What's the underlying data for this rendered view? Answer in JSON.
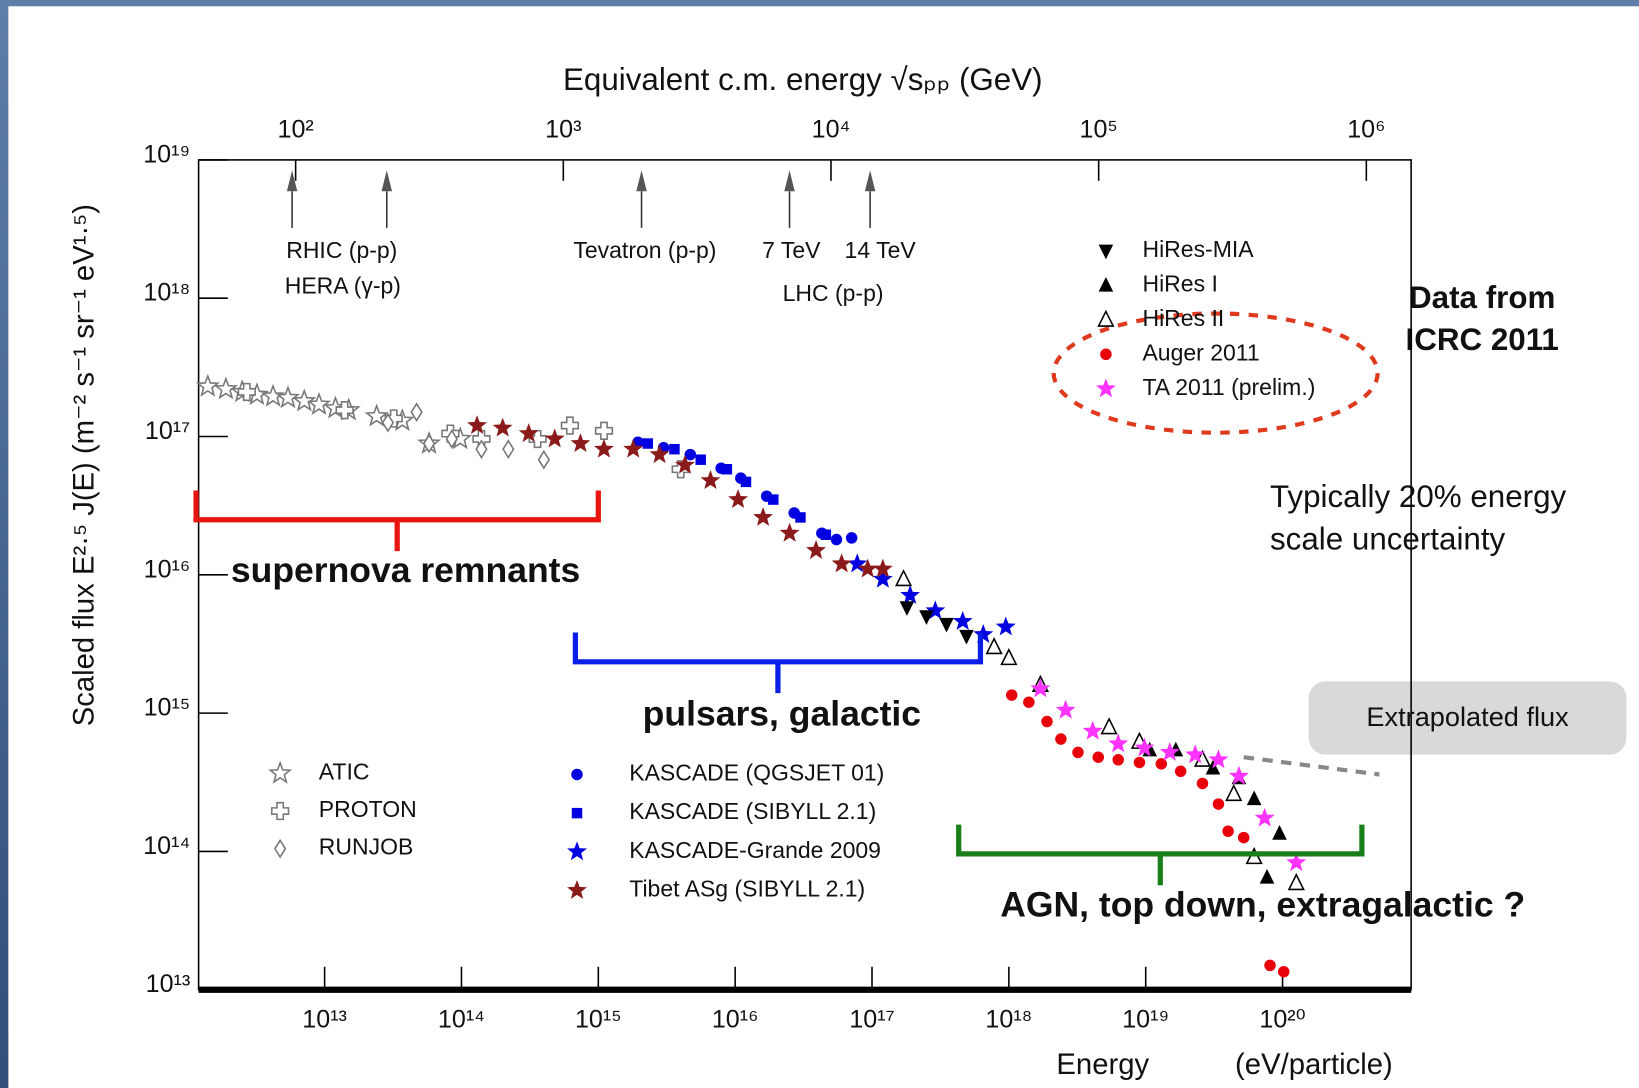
{
  "chart_data": {
    "type": "scatter",
    "x2label": "Equivalent c.m. energy √sₚₚ  (GeV)",
    "xlabel": "Energy",
    "xlabel_unit": "(eV/particle)",
    "ylabel": "Scaled flux  E²·⁵ J(E)  (m⁻² s⁻¹ sr⁻¹ eV¹·⁵)",
    "xscale": "log",
    "yscale": "log",
    "xlim": [
      1200000000000.0,
      8.7e+20
    ],
    "xticks": [
      {
        "value": 10000000000000.0,
        "label": "10¹³"
      },
      {
        "value": 100000000000000.0,
        "label": "10¹⁴"
      },
      {
        "value": 1000000000000000.0,
        "label": "10¹⁵"
      },
      {
        "value": 1e+16,
        "label": "10¹⁶"
      },
      {
        "value": 1e+17,
        "label": "10¹⁷"
      },
      {
        "value": 1e+18,
        "label": "10¹⁸"
      },
      {
        "value": 1e+19,
        "label": "10¹⁹"
      },
      {
        "value": 1e+20,
        "label": "10²⁰"
      }
    ],
    "ylim": [
      10000000000000.0,
      1e+19
    ],
    "yticks": [
      {
        "value": 10000000000000.0,
        "label": "10¹³"
      },
      {
        "value": 100000000000000.0,
        "label": "10¹⁴"
      },
      {
        "value": 1000000000000000.0,
        "label": "10¹⁵"
      },
      {
        "value": 1e+16,
        "label": "10¹⁶"
      },
      {
        "value": 1e+17,
        "label": "10¹⁷"
      },
      {
        "value": 1e+18,
        "label": "10¹⁸"
      },
      {
        "value": 1e+19,
        "label": "10¹⁹"
      }
    ],
    "x2lim": [
      43.4,
      1470000.0
    ],
    "x2ticks": [
      {
        "value": 100,
        "label": "10²"
      },
      {
        "value": 1000,
        "label": "10³"
      },
      {
        "value": 10000,
        "label": "10⁴"
      },
      {
        "value": 100000,
        "label": "10⁵"
      },
      {
        "value": 1000000,
        "label": "10⁶"
      }
    ],
    "x2_markers": [
      97,
      219,
      1960,
      7000,
      14000
    ],
    "x2_marker_labels": [
      "RHIC (p-p)",
      "HERA (γ-p)",
      "Tevatron (p-p)",
      "7 TeV",
      "14 TeV",
      "LHC (p-p)"
    ],
    "series": [
      {
        "name": "ATIC",
        "marker": "star-open",
        "color": "#777777",
        "x": [
          1400000000000.0,
          1900000000000.0,
          2500000000000.0,
          3200000000000.0,
          4200000000000.0,
          5400000000000.0,
          7100000000000.0,
          9100000000000.0,
          12000000000000.0,
          15000000000000.0,
          24000000000000.0,
          37000000000000.0,
          58000000000000.0,
          98000000000000.0
        ],
        "values": [
          2.3e+17,
          2.2e+17,
          2.1e+17,
          2e+17,
          1.95e+17,
          1.9e+17,
          1.8e+17,
          1.7e+17,
          1.6e+17,
          1.55e+17,
          1.4e+17,
          1.3e+17,
          8.9e+16,
          9.6e+16
        ]
      },
      {
        "name": "PROTON",
        "marker": "cross-open",
        "color": "#777777",
        "x": [
          2700000000000.0,
          14000000000000.0,
          32000000000000.0,
          83000000000000.0,
          140000000000000.0,
          360000000000000.0,
          620000000000000.0,
          1100000000000000.0,
          4000000000000000.0
        ],
        "values": [
          2.1e+17,
          1.55e+17,
          1.35e+17,
          1.05e+17,
          9.6e+16,
          9.6e+16,
          1.2e+17,
          1.1e+17,
          5.8e+16
        ]
      },
      {
        "name": "RUNJOB",
        "marker": "diamond-open",
        "color": "#777777",
        "x": [
          29000000000000.0,
          47000000000000.0,
          58000000000000.0,
          85000000000000.0,
          140000000000000.0,
          220000000000000.0,
          400000000000000.0
        ],
        "values": [
          1.26e+17,
          1.5e+17,
          8.9e+16,
          9.6e+16,
          8.1e+16,
          8.1e+16,
          6.8e+16
        ]
      },
      {
        "name": "KASCADE (QGSJET 01)",
        "marker": "circle",
        "color": "#0000e0",
        "x": [
          1950000000000000.0,
          3000000000000000.0,
          4700000000000000.0,
          7900000000000000.0,
          1.1e+16,
          1.7e+16,
          2.7e+16,
          4.3e+16,
          5.5e+16,
          7.1e+16
        ],
        "values": [
          9.1e+16,
          8.3e+16,
          7.4e+16,
          5.9e+16,
          5e+16,
          3.7e+16,
          2.8e+16,
          2e+16,
          1.8e+16,
          1.85e+16
        ]
      },
      {
        "name": "KASCADE (SIBYLL 2.1)",
        "marker": "square",
        "color": "#0000e0",
        "x": [
          2300000000000000.0,
          3600000000000000.0,
          5600000000000000.0,
          8700000000000000.0,
          1.2e+16,
          1.9e+16,
          3e+16,
          4.6e+16
        ],
        "values": [
          8.9e+16,
          8.1e+16,
          6.8e+16,
          5.8e+16,
          4.7e+16,
          3.5e+16,
          2.6e+16,
          1.95e+16
        ]
      },
      {
        "name": "KASCADE-Grande 2009",
        "marker": "star",
        "color": "#0000e0",
        "x": [
          7.8e+16,
          1.2e+17,
          1.9e+17,
          2.9e+17,
          4.6e+17,
          6.5e+17,
          9.5e+17
        ],
        "values": [
          1.2e+16,
          9300000000000000.0,
          7100000000000000.0,
          5500000000000000.0,
          4600000000000000.0,
          3700000000000000.0,
          4200000000000000.0
        ]
      },
      {
        "name": "Tibet ASg (SIBYLL 2.1)",
        "marker": "star",
        "color": "#8b1a1a",
        "x": [
          130000000000000.0,
          200000000000000.0,
          310000000000000.0,
          480000000000000.0,
          740000000000000.0,
          1100000000000000.0,
          1800000000000000.0,
          2800000000000000.0,
          4300000000000000.0,
          6600000000000000.0,
          1.05e+16,
          1.6e+16,
          2.5e+16,
          3.9e+16,
          6e+16,
          9.3e+16,
          1.2e+17
        ],
        "values": [
          1.2e+17,
          1.15e+17,
          1.05e+17,
          9.6e+16,
          8.9e+16,
          8.1e+16,
          8.1e+16,
          7.4e+16,
          6.2e+16,
          4.8e+16,
          3.5e+16,
          2.6e+16,
          2e+16,
          1.5e+16,
          1.2e+16,
          1.1e+16,
          1.1e+16
        ]
      },
      {
        "name": "HiRes-MIA",
        "marker": "triangle-down",
        "color": "#000000",
        "x": [
          1.8e+17,
          2.5e+17,
          3.5e+17,
          4.9e+17
        ],
        "values": [
          5800000000000000.0,
          5000000000000000.0,
          4400000000000000.0,
          3600000000000000.0
        ]
      },
      {
        "name": "HiRes I",
        "marker": "triangle",
        "color": "#000000",
        "x": [
          1.07e+19,
          1.66e+19,
          3.1e+19,
          4.8e+19,
          6.2e+19,
          9.5e+19,
          7.7e+19
        ],
        "values": [
          540000000000000.0,
          540000000000000.0,
          400000000000000.0,
          340000000000000.0,
          240000000000000.0,
          135000000000000.0,
          65000000000000.0
        ]
      },
      {
        "name": "HiRes II",
        "marker": "triangle-open",
        "color": "#000000",
        "x": [
          1.7e+17,
          7.8e+17,
          1e+18,
          1.7e+18,
          5.4e+18,
          9e+18,
          2.6e+19,
          4.4e+19,
          6.2e+19,
          1.26e+20
        ],
        "values": [
          9300000000000000.0,
          3000000000000000.0,
          2500000000000000.0,
          1600000000000000.0,
          790000000000000.0,
          620000000000000.0,
          460000000000000.0,
          260000000000000.0,
          91000000000000.0,
          59000000000000.0
        ]
      },
      {
        "name": "Auger 2011",
        "marker": "circle",
        "color": "#e8000a",
        "x": [
          1.05e+18,
          1.4e+18,
          1.9e+18,
          2.4e+18,
          3.2e+18,
          4.5e+18,
          6.3e+18,
          9e+18,
          1.3e+19,
          1.8e+19,
          2.6e+19,
          3.4e+19,
          4e+19,
          5.2e+19,
          8.1e+19,
          1.02e+20
        ],
        "values": [
          1350000000000000.0,
          1200000000000000.0,
          870000000000000.0,
          650000000000000.0,
          520000000000000.0,
          480000000000000.0,
          460000000000000.0,
          440000000000000.0,
          430000000000000.0,
          380000000000000.0,
          310000000000000.0,
          220000000000000.0,
          140000000000000.0,
          126000000000000.0,
          15000000000000.0,
          13500000000000.0
        ]
      },
      {
        "name": "TA 2011 (prelim.)",
        "marker": "star",
        "color": "#ff33ff",
        "x": [
          1.7e+18,
          2.6e+18,
          4.1e+18,
          6.3e+18,
          9.8e+18,
          1.5e+19,
          2.3e+19,
          3.4e+19,
          4.8e+19,
          7.4e+19,
          1.26e+20
        ],
        "values": [
          1500000000000000.0,
          1050000000000000.0,
          740000000000000.0,
          600000000000000.0,
          560000000000000.0,
          520000000000000.0,
          500000000000000.0,
          460000000000000.0,
          350000000000000.0,
          174000000000000.0,
          83000000000000.0
        ]
      }
    ],
    "extrapolation": {
      "name": "Extrapolated flux",
      "color": "#888888",
      "x": [
        5.2e+19,
        5.1e+20
      ],
      "values": [
        480000000000000.0,
        360000000000000.0
      ]
    },
    "ranges": [
      {
        "label": "supernova remnants",
        "color": "#e8140f",
        "x": [
          1150000000000.0,
          1000000000000000.0
        ],
        "y": 2.5e+16
      },
      {
        "label": "pulsars, galactic",
        "color": "#0b1ee8",
        "x": [
          680000000000000.0,
          6.2e+17
        ],
        "y": 2350000000000000.0
      },
      {
        "label": "AGN, top down, extragalactic ?",
        "color": "#1a7f1a",
        "x": [
          4.3e+17,
          3.8e+20
        ],
        "y": 96000000000000.0
      }
    ],
    "notes": [
      {
        "lines": [
          "Data from",
          "ICRC 2011"
        ],
        "color": "#e03a1e"
      },
      {
        "lines": [
          "Typically 20% energy",
          "scale uncertainty"
        ],
        "color": "#1f2a80"
      }
    ]
  }
}
